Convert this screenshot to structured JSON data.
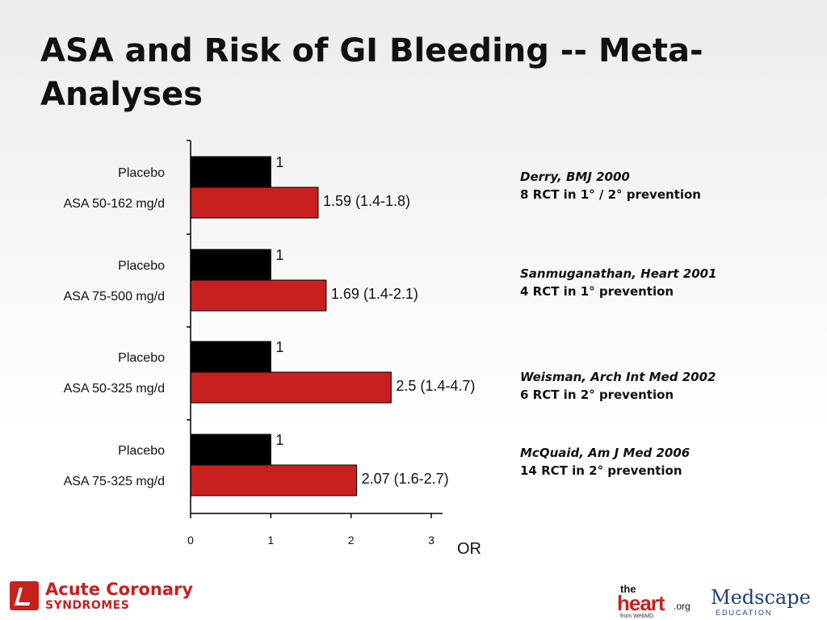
{
  "title": "ASA and Risk of GI Bleeding -- Meta-Analyses",
  "chart_data": {
    "type": "bar",
    "orientation": "horizontal",
    "xlabel": "OR",
    "xlim": [
      0,
      3
    ],
    "xticks": [
      0,
      1,
      2,
      3
    ],
    "groups": [
      {
        "bars": [
          {
            "label": "Placebo",
            "value": 1,
            "value_label": "1",
            "series": "placebo"
          },
          {
            "label": "ASA 50-162 mg/d",
            "value": 1.59,
            "value_label": "1.59 (1.4-1.8)",
            "series": "asa"
          }
        ]
      },
      {
        "bars": [
          {
            "label": "Placebo",
            "value": 1,
            "value_label": "1",
            "series": "placebo"
          },
          {
            "label": "ASA 75-500 mg/d",
            "value": 1.69,
            "value_label": "1.69 (1.4-2.1)",
            "series": "asa"
          }
        ]
      },
      {
        "bars": [
          {
            "label": "Placebo",
            "value": 1,
            "value_label": "1",
            "series": "placebo"
          },
          {
            "label": "ASA 50-325 mg/d",
            "value": 2.5,
            "value_label": "2.5 (1.4-4.7)",
            "series": "asa"
          }
        ]
      },
      {
        "bars": [
          {
            "label": "Placebo",
            "value": 1,
            "value_label": "1",
            "series": "placebo"
          },
          {
            "label": "ASA 75-325 mg/d",
            "value": 2.07,
            "value_label": "2.07 (1.6-2.7)",
            "series": "asa"
          }
        ]
      }
    ],
    "colors": {
      "placebo": "#000000",
      "asa": "#c8201e"
    },
    "grid": false
  },
  "studies": [
    {
      "title": "Derry,  BMJ 2000",
      "desc": "8 RCT in 1°  / 2°  prevention"
    },
    {
      "title": "Sanmuganathan,  Heart 2001",
      "desc": "4 RCT in 1°  prevention"
    },
    {
      "title": "Weisman, Arch Int Med 2002",
      "desc": "6 RCT in 2°  prevention"
    },
    {
      "title": "McQuaid, Am J Med 2006",
      "desc": "14 RCT in 2°  prevention"
    }
  ],
  "logos": {
    "acs_line1": "Acute Coronary",
    "acs_line2": "SYNDROMES",
    "heart_small": "the",
    "heart_main": "heart",
    "heart_org": ".org",
    "heart_from": "from WebMD",
    "medscape_main": "Medscape",
    "medscape_sub": "EDUCATION"
  }
}
